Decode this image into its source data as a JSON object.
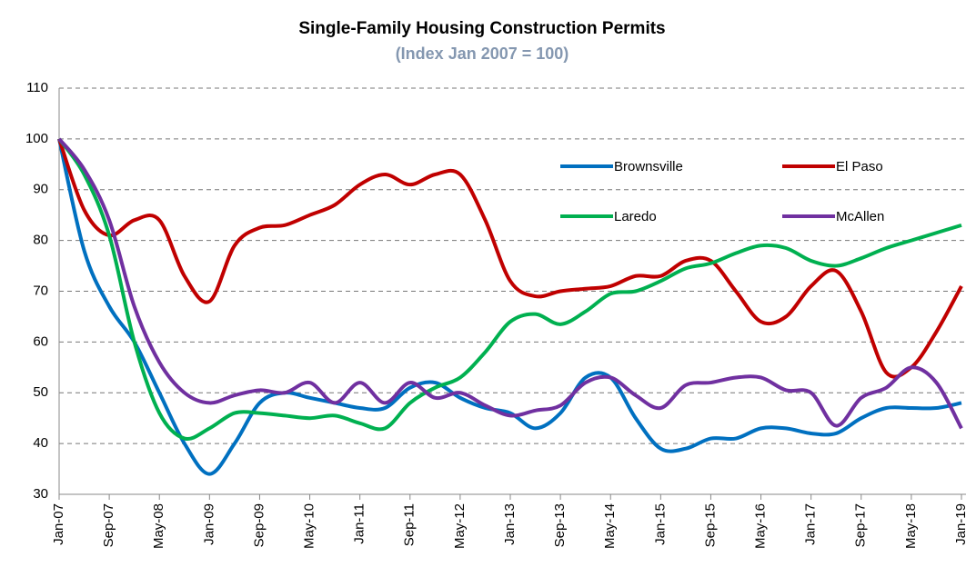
{
  "chart_data": {
    "type": "line",
    "title": "Single-Family Housing Construction Permits",
    "subtitle": "(Index Jan 2007 = 100)",
    "categories": [
      "Jan-07",
      null,
      "Sep-07",
      null,
      "May-08",
      null,
      "Jan-09",
      null,
      "Sep-09",
      null,
      "May-10",
      null,
      "Jan-11",
      null,
      "Sep-11",
      null,
      "May-12",
      null,
      "Jan-13",
      null,
      "Sep-13",
      null,
      "May-14",
      null,
      "Jan-15",
      null,
      "Sep-15",
      null,
      "May-16",
      null,
      "Jan-17",
      null,
      "Sep-17",
      null,
      "May-18",
      null,
      "Jan-19"
    ],
    "series": [
      {
        "name": "Brownsville",
        "color": "#0070c0",
        "values": [
          100,
          78,
          67,
          60,
          50,
          40,
          34,
          40,
          48,
          50,
          49,
          48,
          47,
          47,
          51,
          52,
          49,
          47,
          46,
          43,
          46,
          53,
          53,
          45,
          39,
          39,
          41,
          41,
          43,
          43,
          42,
          42,
          45,
          47,
          47,
          47,
          48
        ]
      },
      {
        "name": "El Paso",
        "color": "#c00000",
        "values": [
          100,
          86,
          81,
          84,
          84,
          73,
          68,
          79,
          82.5,
          83,
          85,
          87,
          91,
          93,
          91,
          93,
          93,
          84,
          72,
          69,
          70,
          70.5,
          71,
          73,
          73,
          76,
          76,
          70,
          64,
          65,
          71,
          74,
          66,
          54,
          55,
          62,
          71
        ]
      },
      {
        "name": "Laredo",
        "color": "#00b050",
        "values": [
          100,
          93,
          81,
          60,
          46,
          41,
          43,
          46,
          46,
          45.5,
          45,
          45.5,
          44,
          43,
          48,
          51,
          53,
          58,
          64,
          65.5,
          63.5,
          66,
          69.5,
          70,
          72,
          74.5,
          75.5,
          77.5,
          79,
          78.5,
          76,
          75,
          76.5,
          78.5,
          80,
          81.5,
          83
        ]
      },
      {
        "name": "McAllen",
        "color": "#7030a0",
        "values": [
          100,
          94,
          84,
          67,
          56,
          50,
          48,
          49.5,
          50.5,
          50,
          52,
          48,
          52,
          48,
          52,
          49,
          50,
          47.5,
          45.5,
          46.5,
          47.5,
          52,
          53,
          49.5,
          47,
          51.5,
          52,
          53,
          53,
          50.5,
          50,
          43.5,
          49,
          51,
          55,
          52,
          43
        ]
      }
    ],
    "ylim": [
      30,
      110
    ],
    "yticks": [
      30,
      40,
      50,
      60,
      70,
      80,
      90,
      100,
      110
    ],
    "grid": true,
    "legend": "top-right"
  }
}
